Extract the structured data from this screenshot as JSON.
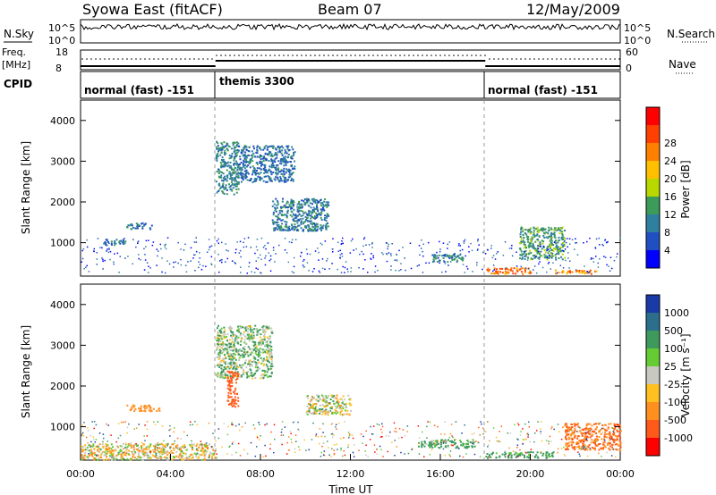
{
  "header": {
    "station": "Syowa East (fitACF)",
    "beam": "Beam 07",
    "date": "12/May/2009"
  },
  "panel_labels": {
    "nsky": "N.Sky",
    "nsearch": "N.Search",
    "freq_top": "Freq.",
    "freq_unit": "[MHz]",
    "nave": "Nave",
    "cpid": "CPID",
    "top_ticks_left": [
      "10^5",
      "10^0"
    ],
    "top_ticks_right": [
      "10^5",
      "10^0"
    ],
    "freq_ticks": [
      "18",
      "8"
    ],
    "nave_ticks": [
      "60",
      "0"
    ]
  },
  "modes": [
    {
      "label": "normal (fast) -151",
      "start_hour": 0,
      "end_hour": 6
    },
    {
      "label": "themis 3300",
      "start_hour": 6,
      "end_hour": 18
    },
    {
      "label": "normal (fast) -151",
      "start_hour": 18,
      "end_hour": 24
    }
  ],
  "axes": {
    "xlabel": "Time UT",
    "xticks": [
      "00:00",
      "04:00",
      "08:00",
      "12:00",
      "16:00",
      "20:00",
      "00:00"
    ],
    "xlim_hours": [
      0,
      24
    ],
    "ylabel": "Slant Range [km]",
    "yticks": [
      "1000",
      "2000",
      "3000",
      "4000"
    ],
    "ytick_values": [
      1000,
      2000,
      3000,
      4000
    ],
    "ylim_km": [
      180,
      4500
    ]
  },
  "colorbars": {
    "power": {
      "label": "Power [dB]",
      "ticks": [
        "4",
        "8",
        "12",
        "16",
        "20",
        "24",
        "28"
      ],
      "colors": [
        "#0000ff",
        "#1f4fc0",
        "#2f7f9f",
        "#3c9a5a",
        "#b8d800",
        "#ffc000",
        "#ff8000",
        "#ff4000",
        "#ff0000"
      ]
    },
    "velocity": {
      "label": "Velocity [m s⁻¹]",
      "ticks": [
        "1000",
        "500",
        "100",
        "25",
        "-25",
        "-100",
        "-500",
        "-1000"
      ],
      "colors": [
        "#1a3aa8",
        "#2c6f8c",
        "#3d9a5c",
        "#66cc33",
        "#c8c8c0",
        "#ffc020",
        "#ff9020",
        "#ff5a1a",
        "#ff0000"
      ]
    }
  },
  "chart_data": {
    "type": "heatmap",
    "title": "Syowa East (fitACF) Beam 07 12/May/2009",
    "xlabel": "Time UT",
    "ylabel": "Slant Range [km]",
    "xlim": [
      0,
      24
    ],
    "ylim": [
      180,
      4500
    ],
    "panels": [
      {
        "name": "Power [dB]",
        "echo_regions": [
          {
            "t": [
              6.0,
              7.0
            ],
            "range_km": [
              2200,
              3500
            ],
            "power_db": 8
          },
          {
            "t": [
              7.0,
              9.5
            ],
            "range_km": [
              2500,
              3400
            ],
            "power_db": 6
          },
          {
            "t": [
              8.5,
              11.0
            ],
            "range_km": [
              1300,
              2100
            ],
            "power_db": 7
          },
          {
            "t": [
              2.0,
              3.2
            ],
            "range_km": [
              1350,
              1500
            ],
            "power_db": 6
          },
          {
            "t": [
              1.0,
              2.0
            ],
            "range_km": [
              950,
              1100
            ],
            "power_db": 6
          },
          {
            "t": [
              15.5,
              17.0
            ],
            "range_km": [
              550,
              750
            ],
            "power_db": 8
          },
          {
            "t": [
              18.0,
              20.0
            ],
            "range_km": [
              250,
              400
            ],
            "power_db": 22
          },
          {
            "t": [
              21.0,
              23.0
            ],
            "range_km": [
              250,
              350
            ],
            "power_db": 20
          },
          {
            "t": [
              19.5,
              21.5
            ],
            "range_km": [
              600,
              1400
            ],
            "power_db": 10
          }
        ]
      },
      {
        "name": "Velocity [m s⁻¹]",
        "echo_regions": [
          {
            "t": [
              6.0,
              8.5
            ],
            "range_km": [
              2200,
              3500
            ],
            "velocity": 50
          },
          {
            "t": [
              6.5,
              7.0
            ],
            "range_km": [
              1500,
              2400
            ],
            "velocity": -600
          },
          {
            "t": [
              10.0,
              12.0
            ],
            "range_km": [
              1300,
              1800
            ],
            "velocity": 0
          },
          {
            "t": [
              2.0,
              3.5
            ],
            "range_km": [
              1400,
              1550
            ],
            "velocity": -200
          },
          {
            "t": [
              15.0,
              17.5
            ],
            "range_km": [
              500,
              700
            ],
            "velocity": 100
          },
          {
            "t": [
              18.0,
              21.0
            ],
            "range_km": [
              250,
              400
            ],
            "velocity": 120
          },
          {
            "t": [
              21.5,
              24.0
            ],
            "range_km": [
              450,
              1100
            ],
            "velocity": -300
          },
          {
            "t": [
              0.0,
              6.0
            ],
            "range_km": [
              200,
              600
            ],
            "velocity": -30
          }
        ]
      }
    ]
  }
}
